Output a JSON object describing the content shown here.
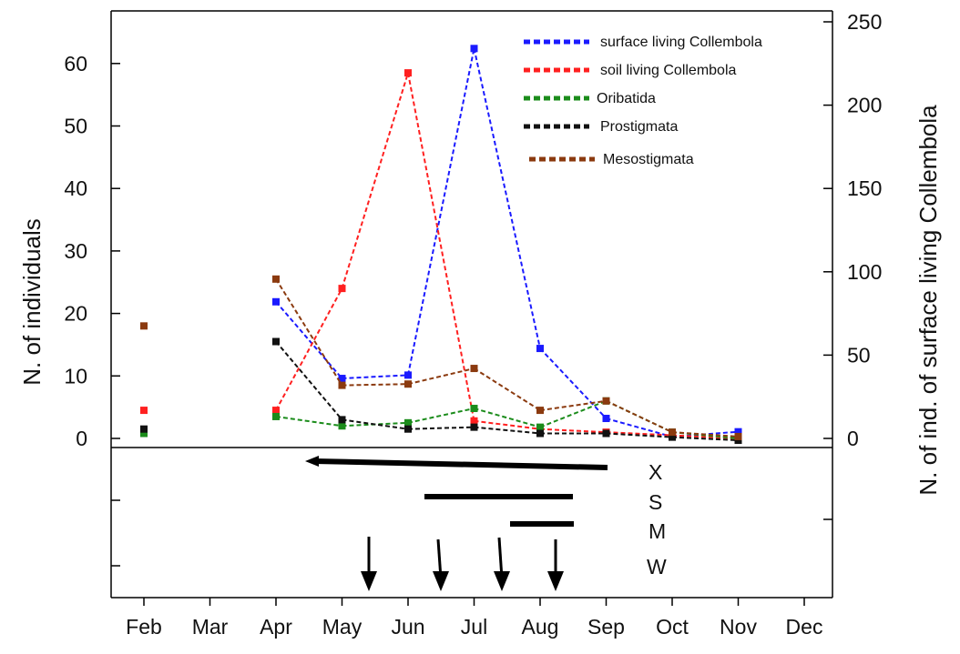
{
  "chart_data": {
    "type": "line",
    "xlabel": "",
    "ylabel": "N. of individuals",
    "y2label": "N. of ind. of surface living Collembola",
    "categories": [
      "Feb",
      "Mar",
      "Apr",
      "May",
      "Jun",
      "Jul",
      "Aug",
      "Sep",
      "Oct",
      "Nov",
      "Dec"
    ],
    "ylim": [
      0,
      65
    ],
    "yticks": [
      0,
      10,
      20,
      30,
      40,
      50,
      60
    ],
    "y2lim": [
      0,
      250
    ],
    "y2ticks": [
      0,
      50,
      100,
      150,
      200,
      250
    ],
    "grid": false,
    "legend_position": "top-right",
    "series": [
      {
        "name": "surface living Collembola",
        "color": "#1a1aff",
        "axis": "right",
        "values": [
          3,
          null,
          82,
          36,
          38,
          234,
          54,
          12,
          1,
          4,
          null
        ]
      },
      {
        "name": "soil living Collembola",
        "color": "#ff2020",
        "axis": "left",
        "values": [
          4.5,
          null,
          4.5,
          24,
          58.5,
          2.8,
          1.5,
          1,
          0.5,
          0,
          null
        ]
      },
      {
        "name": "Oribatida",
        "color": "#1b8c1b",
        "axis": "left",
        "values": [
          0.8,
          null,
          3.5,
          2,
          2.5,
          4.8,
          1.8,
          6,
          1,
          0,
          null
        ]
      },
      {
        "name": "Prostigmata",
        "color": "#111111",
        "axis": "left",
        "values": [
          1.5,
          null,
          15.5,
          3,
          1.5,
          1.8,
          0.8,
          0.8,
          0.2,
          -0.3,
          null
        ]
      },
      {
        "name": "Mesostigmata",
        "color": "#8b3a0f",
        "axis": "left",
        "values": [
          18,
          null,
          25.5,
          8.5,
          8.7,
          11.2,
          4.5,
          6,
          1,
          0.3,
          null
        ]
      }
    ],
    "periods": [
      {
        "label": "X",
        "start": "Sep",
        "end": "mid Apr–May",
        "arrow": true
      },
      {
        "label": "S",
        "start": "mid May–Jun",
        "end": "mid Aug–Sep"
      },
      {
        "label": "M",
        "start": "mid Jul–Aug",
        "end": "mid Aug–Sep"
      },
      {
        "label": "W",
        "events": [
          "mid May–Jun",
          "mid Jun–Jul",
          "mid Jul–Aug",
          "Aug"
        ]
      }
    ]
  }
}
